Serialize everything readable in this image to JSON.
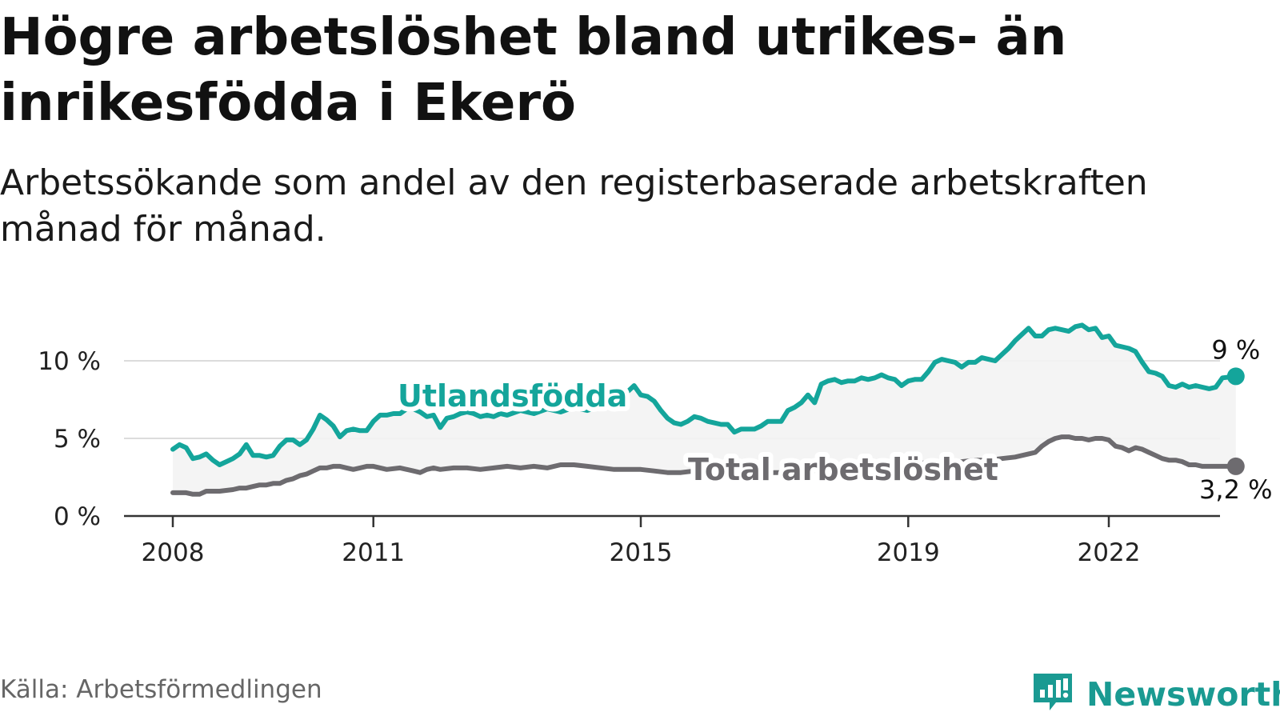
{
  "title": "Högre arbetslöshet bland utrikes- än inrikesfödda i Ekerö",
  "subtitle": "Arbetssökande som andel av den registerbaserade arbetskraften månad för månad.",
  "source": "Källa: Arbetsförmedlingen",
  "brand": "Newsworthy",
  "chart_data": {
    "type": "line",
    "ylim": [
      0,
      12.5
    ],
    "yticks": [
      0,
      5,
      10
    ],
    "ytick_labels": [
      "0 %",
      "5 %",
      "10 %"
    ],
    "xticks": [
      2008,
      2011,
      2015,
      2019,
      2022
    ],
    "xtick_labels": [
      "2008",
      "2011",
      "2015",
      "2019",
      "2022"
    ],
    "xlim": [
      2007.3,
      2023.6
    ],
    "grid": true,
    "series": [
      {
        "name": "Utlandsfödda",
        "color": "#14a59b",
        "end_label": "9 %",
        "points": [
          [
            2008.0,
            4.3
          ],
          [
            2008.1,
            4.6
          ],
          [
            2008.2,
            4.4
          ],
          [
            2008.3,
            3.7
          ],
          [
            2008.4,
            3.8
          ],
          [
            2008.5,
            4.0
          ],
          [
            2008.6,
            3.6
          ],
          [
            2008.7,
            3.3
          ],
          [
            2008.8,
            3.5
          ],
          [
            2008.9,
            3.7
          ],
          [
            2009.0,
            4.0
          ],
          [
            2009.1,
            4.6
          ],
          [
            2009.2,
            3.9
          ],
          [
            2009.3,
            3.9
          ],
          [
            2009.4,
            3.8
          ],
          [
            2009.5,
            3.9
          ],
          [
            2009.6,
            4.5
          ],
          [
            2009.7,
            4.9
          ],
          [
            2009.8,
            4.9
          ],
          [
            2009.9,
            4.6
          ],
          [
            2010.0,
            4.9
          ],
          [
            2010.1,
            5.6
          ],
          [
            2010.2,
            6.5
          ],
          [
            2010.3,
            6.2
          ],
          [
            2010.4,
            5.8
          ],
          [
            2010.5,
            5.1
          ],
          [
            2010.6,
            5.5
          ],
          [
            2010.7,
            5.6
          ],
          [
            2010.8,
            5.5
          ],
          [
            2010.9,
            5.5
          ],
          [
            2011.0,
            6.1
          ],
          [
            2011.1,
            6.5
          ],
          [
            2011.2,
            6.5
          ],
          [
            2011.3,
            6.6
          ],
          [
            2011.4,
            6.6
          ],
          [
            2011.5,
            6.9
          ],
          [
            2011.6,
            6.9
          ],
          [
            2011.7,
            6.7
          ],
          [
            2011.8,
            6.4
          ],
          [
            2011.9,
            6.5
          ],
          [
            2012.0,
            5.7
          ],
          [
            2012.1,
            6.3
          ],
          [
            2012.2,
            6.4
          ],
          [
            2012.3,
            6.6
          ],
          [
            2012.4,
            6.7
          ],
          [
            2012.5,
            6.6
          ],
          [
            2012.6,
            6.4
          ],
          [
            2012.7,
            6.5
          ],
          [
            2012.8,
            6.4
          ],
          [
            2012.9,
            6.6
          ],
          [
            2013.0,
            6.5
          ],
          [
            2013.2,
            6.8
          ],
          [
            2013.4,
            6.6
          ],
          [
            2013.6,
            6.9
          ],
          [
            2013.8,
            6.7
          ],
          [
            2014.0,
            7.0
          ],
          [
            2014.2,
            6.8
          ],
          [
            2014.4,
            7.1
          ],
          [
            2014.6,
            7.3
          ],
          [
            2014.7,
            7.6
          ],
          [
            2014.8,
            8.0
          ],
          [
            2014.9,
            8.4
          ],
          [
            2015.0,
            7.8
          ],
          [
            2015.1,
            7.7
          ],
          [
            2015.2,
            7.4
          ],
          [
            2015.3,
            6.8
          ],
          [
            2015.4,
            6.3
          ],
          [
            2015.5,
            6.0
          ],
          [
            2015.6,
            5.9
          ],
          [
            2015.7,
            6.1
          ],
          [
            2015.8,
            6.4
          ],
          [
            2015.9,
            6.3
          ],
          [
            2016.0,
            6.1
          ],
          [
            2016.1,
            6.0
          ],
          [
            2016.2,
            5.9
          ],
          [
            2016.3,
            5.9
          ],
          [
            2016.4,
            5.4
          ],
          [
            2016.5,
            5.6
          ],
          [
            2016.6,
            5.6
          ],
          [
            2016.7,
            5.6
          ],
          [
            2016.8,
            5.8
          ],
          [
            2016.9,
            6.1
          ],
          [
            2017.0,
            6.1
          ],
          [
            2017.1,
            6.1
          ],
          [
            2017.2,
            6.8
          ],
          [
            2017.3,
            7.0
          ],
          [
            2017.4,
            7.3
          ],
          [
            2017.5,
            7.8
          ],
          [
            2017.6,
            7.3
          ],
          [
            2017.7,
            8.5
          ],
          [
            2017.8,
            8.7
          ],
          [
            2017.9,
            8.8
          ],
          [
            2018.0,
            8.6
          ],
          [
            2018.1,
            8.7
          ],
          [
            2018.2,
            8.7
          ],
          [
            2018.3,
            8.9
          ],
          [
            2018.4,
            8.8
          ],
          [
            2018.5,
            8.9
          ],
          [
            2018.6,
            9.1
          ],
          [
            2018.7,
            8.9
          ],
          [
            2018.8,
            8.8
          ],
          [
            2018.9,
            8.4
          ],
          [
            2019.0,
            8.7
          ],
          [
            2019.1,
            8.8
          ],
          [
            2019.2,
            8.8
          ],
          [
            2019.3,
            9.3
          ],
          [
            2019.4,
            9.9
          ],
          [
            2019.5,
            10.1
          ],
          [
            2019.6,
            10.0
          ],
          [
            2019.7,
            9.9
          ],
          [
            2019.8,
            9.6
          ],
          [
            2019.9,
            9.9
          ],
          [
            2020.0,
            9.9
          ],
          [
            2020.1,
            10.2
          ],
          [
            2020.2,
            10.1
          ],
          [
            2020.3,
            10.0
          ],
          [
            2020.4,
            10.4
          ],
          [
            2020.5,
            10.8
          ],
          [
            2020.6,
            11.3
          ],
          [
            2020.7,
            11.7
          ],
          [
            2020.8,
            12.1
          ],
          [
            2020.9,
            11.6
          ],
          [
            2021.0,
            11.6
          ],
          [
            2021.1,
            12.0
          ],
          [
            2021.2,
            12.1
          ],
          [
            2021.3,
            12.0
          ],
          [
            2021.4,
            11.9
          ],
          [
            2021.5,
            12.2
          ],
          [
            2021.6,
            12.3
          ],
          [
            2021.7,
            12.0
          ],
          [
            2021.8,
            12.1
          ],
          [
            2021.9,
            11.5
          ],
          [
            2022.0,
            11.6
          ],
          [
            2022.1,
            11.0
          ],
          [
            2022.2,
            10.9
          ],
          [
            2022.3,
            10.8
          ],
          [
            2022.4,
            10.6
          ],
          [
            2022.5,
            9.9
          ],
          [
            2022.6,
            9.3
          ],
          [
            2022.7,
            9.2
          ],
          [
            2022.8,
            9.0
          ],
          [
            2022.9,
            8.4
          ],
          [
            2023.0,
            8.3
          ],
          [
            2023.1,
            8.5
          ],
          [
            2023.2,
            8.3
          ],
          [
            2023.3,
            8.4
          ],
          [
            2023.4,
            8.3
          ],
          [
            2023.5,
            8.2
          ],
          [
            2023.6,
            8.3
          ],
          [
            2023.7,
            8.9
          ],
          [
            2023.9,
            9.0
          ]
        ]
      },
      {
        "name": "Total arbetslöshet",
        "color": "#6d6b6f",
        "end_label": "3,2 %",
        "points": [
          [
            2008.0,
            1.5
          ],
          [
            2008.2,
            1.5
          ],
          [
            2008.3,
            1.4
          ],
          [
            2008.4,
            1.4
          ],
          [
            2008.5,
            1.6
          ],
          [
            2008.7,
            1.6
          ],
          [
            2008.9,
            1.7
          ],
          [
            2009.0,
            1.8
          ],
          [
            2009.1,
            1.8
          ],
          [
            2009.2,
            1.9
          ],
          [
            2009.3,
            2.0
          ],
          [
            2009.4,
            2.0
          ],
          [
            2009.5,
            2.1
          ],
          [
            2009.6,
            2.1
          ],
          [
            2009.7,
            2.3
          ],
          [
            2009.8,
            2.4
          ],
          [
            2009.9,
            2.6
          ],
          [
            2010.0,
            2.7
          ],
          [
            2010.1,
            2.9
          ],
          [
            2010.2,
            3.1
          ],
          [
            2010.3,
            3.1
          ],
          [
            2010.4,
            3.2
          ],
          [
            2010.5,
            3.2
          ],
          [
            2010.6,
            3.1
          ],
          [
            2010.7,
            3.0
          ],
          [
            2010.8,
            3.1
          ],
          [
            2010.9,
            3.2
          ],
          [
            2011.0,
            3.2
          ],
          [
            2011.2,
            3.0
          ],
          [
            2011.4,
            3.1
          ],
          [
            2011.5,
            3.0
          ],
          [
            2011.6,
            2.9
          ],
          [
            2011.7,
            2.8
          ],
          [
            2011.8,
            3.0
          ],
          [
            2011.9,
            3.1
          ],
          [
            2012.0,
            3.0
          ],
          [
            2012.2,
            3.1
          ],
          [
            2012.4,
            3.1
          ],
          [
            2012.6,
            3.0
          ],
          [
            2012.8,
            3.1
          ],
          [
            2013.0,
            3.2
          ],
          [
            2013.2,
            3.1
          ],
          [
            2013.4,
            3.2
          ],
          [
            2013.6,
            3.1
          ],
          [
            2013.8,
            3.3
          ],
          [
            2014.0,
            3.3
          ],
          [
            2014.2,
            3.2
          ],
          [
            2014.4,
            3.1
          ],
          [
            2014.6,
            3.0
          ],
          [
            2014.8,
            3.0
          ],
          [
            2015.0,
            3.0
          ],
          [
            2015.2,
            2.9
          ],
          [
            2015.4,
            2.8
          ],
          [
            2015.6,
            2.8
          ],
          [
            2015.8,
            2.9
          ],
          [
            2016.0,
            2.9
          ],
          [
            2016.2,
            2.8
          ],
          [
            2016.4,
            2.7
          ],
          [
            2016.6,
            2.7
          ],
          [
            2016.8,
            2.7
          ],
          [
            2017.0,
            2.8
          ],
          [
            2017.2,
            2.8
          ],
          [
            2017.4,
            2.9
          ],
          [
            2017.6,
            2.9
          ],
          [
            2017.8,
            3.0
          ],
          [
            2018.0,
            3.1
          ],
          [
            2018.2,
            3.1
          ],
          [
            2018.4,
            3.2
          ],
          [
            2018.6,
            3.2
          ],
          [
            2018.8,
            3.3
          ],
          [
            2019.0,
            3.3
          ],
          [
            2019.2,
            3.4
          ],
          [
            2019.4,
            3.5
          ],
          [
            2019.6,
            3.5
          ],
          [
            2019.8,
            3.5
          ],
          [
            2020.0,
            3.6
          ],
          [
            2020.2,
            3.6
          ],
          [
            2020.4,
            3.7
          ],
          [
            2020.6,
            3.8
          ],
          [
            2020.8,
            4.0
          ],
          [
            2020.9,
            4.1
          ],
          [
            2021.0,
            4.5
          ],
          [
            2021.1,
            4.8
          ],
          [
            2021.2,
            5.0
          ],
          [
            2021.3,
            5.1
          ],
          [
            2021.4,
            5.1
          ],
          [
            2021.5,
            5.0
          ],
          [
            2021.6,
            5.0
          ],
          [
            2021.7,
            4.9
          ],
          [
            2021.8,
            5.0
          ],
          [
            2021.9,
            5.0
          ],
          [
            2022.0,
            4.9
          ],
          [
            2022.1,
            4.5
          ],
          [
            2022.2,
            4.4
          ],
          [
            2022.3,
            4.2
          ],
          [
            2022.4,
            4.4
          ],
          [
            2022.5,
            4.3
          ],
          [
            2022.6,
            4.1
          ],
          [
            2022.7,
            3.9
          ],
          [
            2022.8,
            3.7
          ],
          [
            2022.9,
            3.6
          ],
          [
            2023.0,
            3.6
          ],
          [
            2023.1,
            3.5
          ],
          [
            2023.2,
            3.3
          ],
          [
            2023.3,
            3.3
          ],
          [
            2023.4,
            3.2
          ],
          [
            2023.5,
            3.2
          ],
          [
            2023.6,
            3.2
          ],
          [
            2023.7,
            3.2
          ],
          [
            2023.9,
            3.2
          ]
        ]
      }
    ]
  }
}
